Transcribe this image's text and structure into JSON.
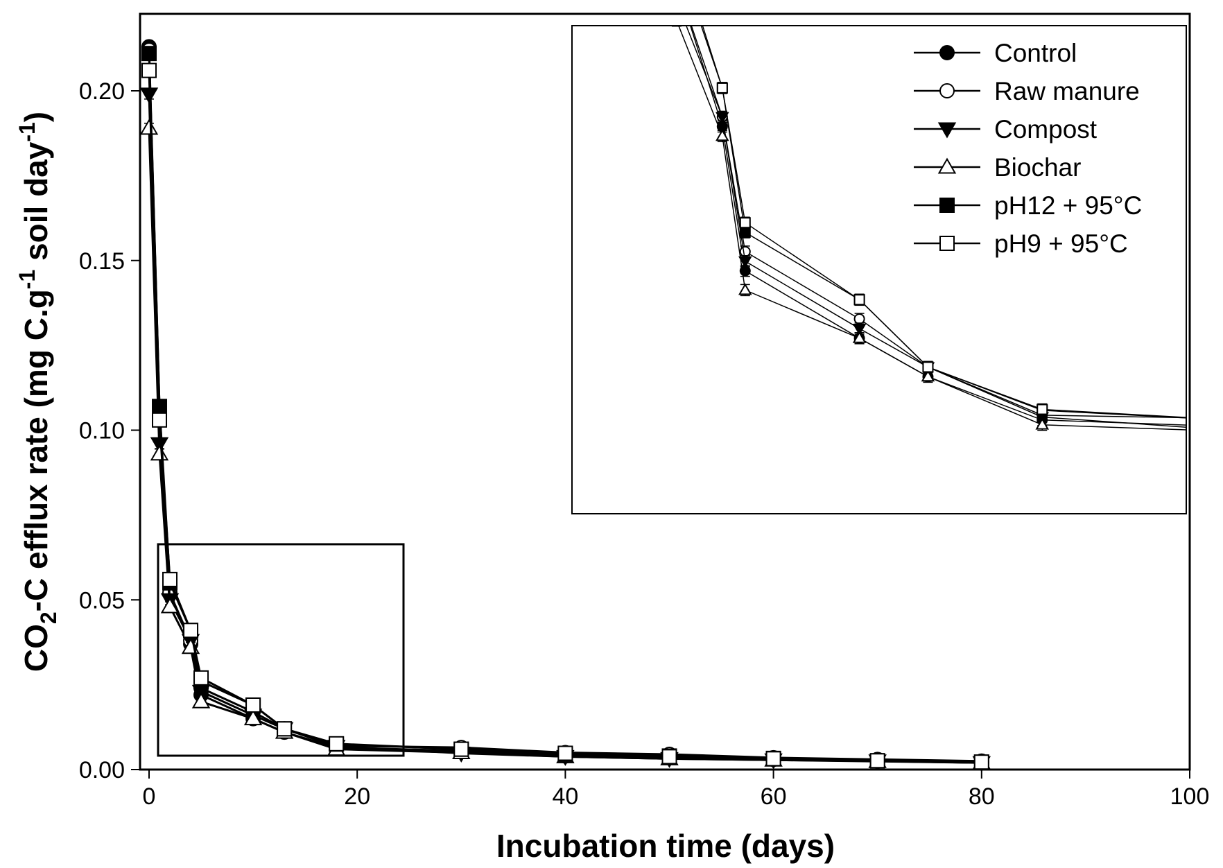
{
  "chart_data": {
    "type": "line",
    "xlabel": "Incubation time (days)",
    "ylabel": {
      "prefix": "CO",
      "sub": "2",
      "middle": "-C  efflux rate (mg C.g",
      "sup1": "-1",
      "middle2": " soil day",
      "sup2": "-1",
      "suffix": ")"
    },
    "xlim": [
      0,
      100
    ],
    "ylim": [
      0,
      0.22
    ],
    "xticks": [
      "0",
      "20",
      "40",
      "60",
      "80",
      "100"
    ],
    "yticks": [
      "0.00",
      "0.05",
      "0.10",
      "0.15",
      "0.20"
    ],
    "legend_position": "top-right",
    "x": [
      0,
      1,
      2,
      4,
      5,
      10,
      13,
      18,
      30,
      40,
      50,
      60,
      70,
      80
    ],
    "series": [
      {
        "name": "Control",
        "marker": "circle",
        "fill": "black",
        "values": [
          0.213,
          0.107,
          0.052,
          0.037,
          0.022,
          0.015,
          0.011,
          0.0065,
          0.0055,
          0.004,
          0.0035,
          0.003,
          0.0025,
          0.002
        ]
      },
      {
        "name": "Raw manure",
        "marker": "circle",
        "fill": "white",
        "values": [
          0.212,
          0.105,
          0.052,
          0.038,
          0.024,
          0.017,
          0.012,
          0.007,
          0.0065,
          0.005,
          0.0045,
          0.0035,
          0.003,
          0.0025
        ]
      },
      {
        "name": "Compost",
        "marker": "triangle-down",
        "fill": "black",
        "values": [
          0.199,
          0.096,
          0.05,
          0.038,
          0.023,
          0.016,
          0.012,
          0.0068,
          0.0048,
          0.0038,
          0.0032,
          0.0028,
          0.0025,
          0.002
        ]
      },
      {
        "name": "Biochar",
        "marker": "triangle-up",
        "fill": "white",
        "values": [
          0.189,
          0.093,
          0.048,
          0.036,
          0.02,
          0.015,
          0.011,
          0.006,
          0.005,
          0.0038,
          0.0032,
          0.0028,
          0.0024,
          0.002
        ]
      },
      {
        "name": "pH12 + 95°C",
        "marker": "square",
        "fill": "black",
        "values": [
          0.211,
          0.107,
          0.055,
          0.041,
          0.026,
          0.019,
          0.012,
          0.0075,
          0.006,
          0.0045,
          0.004,
          0.0033,
          0.0026,
          0.0022
        ]
      },
      {
        "name": "pH9 + 95°C",
        "marker": "square",
        "fill": "white",
        "values": [
          0.206,
          0.103,
          0.056,
          0.041,
          0.027,
          0.019,
          0.012,
          0.0076,
          0.006,
          0.0048,
          0.0038,
          0.0032,
          0.0026,
          0.0022
        ]
      }
    ],
    "inset": {
      "note": "magnified view of the boxed region",
      "xlim": [
        0,
        24
      ],
      "ylim": [
        0,
        0.05
      ]
    }
  },
  "colors": {
    "line": "#000000",
    "open_marker": "#ffffff",
    "filled_marker": "#000000",
    "background": "#ffffff"
  }
}
